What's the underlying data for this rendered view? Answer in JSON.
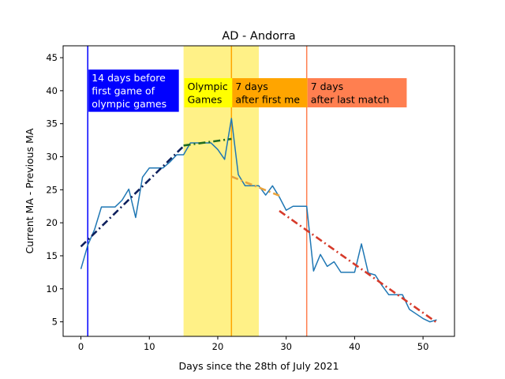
{
  "chart_data": {
    "type": "line",
    "title": "AD - Andorra",
    "xlabel": "Days since the 28th of July 2021",
    "ylabel": "Current MA - Previous MA",
    "xlim": [
      -2.6,
      54.6
    ],
    "ylim": [
      2.8,
      46.8
    ],
    "xticks": [
      0,
      10,
      20,
      30,
      40,
      50
    ],
    "yticks": [
      5,
      10,
      15,
      20,
      25,
      30,
      35,
      40,
      45
    ],
    "grid": false,
    "series": [
      {
        "color": "#1f77b4",
        "x": [
          0,
          1,
          2,
          3,
          4,
          5,
          6,
          7,
          8,
          9,
          10,
          11,
          12,
          13,
          14,
          15,
          16,
          17,
          18,
          19,
          20,
          21,
          22,
          23,
          24,
          25,
          26,
          27,
          28,
          29,
          30,
          31,
          32,
          33,
          34,
          35,
          36,
          37,
          38,
          39,
          40,
          41,
          42,
          43,
          44,
          45,
          46,
          47,
          48,
          49,
          50,
          51,
          52
        ],
        "y": [
          13.0,
          16.6,
          19.0,
          22.4,
          22.4,
          22.4,
          23.4,
          25.1,
          20.8,
          26.9,
          28.3,
          28.3,
          28.3,
          29.2,
          30.3,
          30.3,
          32.1,
          32.1,
          32.1,
          32.1,
          31.1,
          29.6,
          35.8,
          27.3,
          25.6,
          25.6,
          25.6,
          24.2,
          25.6,
          23.9,
          21.9,
          22.5,
          22.5,
          22.5,
          12.7,
          15.2,
          13.4,
          14.1,
          12.5,
          12.5,
          12.5,
          16.8,
          12.4,
          12.1,
          10.5,
          9.1,
          9.1,
          9.1,
          6.9,
          6.2,
          5.5,
          5.0,
          5.3
        ]
      }
    ],
    "trend_lines": [
      {
        "color": "#0d1f5c",
        "x": [
          0,
          15
        ],
        "y": [
          16.4,
          31.6
        ]
      },
      {
        "color": "#1f6b1f",
        "x": [
          15,
          22
        ],
        "y": [
          31.7,
          32.7
        ]
      },
      {
        "color": "#e8a33d",
        "x": [
          22,
          29
        ],
        "y": [
          27.0,
          24.1
        ]
      },
      {
        "color": "#d63a2a",
        "x": [
          29,
          52
        ],
        "y": [
          21.8,
          4.9
        ]
      }
    ],
    "shaded_regions": [
      {
        "color": "#fff07a",
        "x": [
          15,
          26
        ]
      }
    ],
    "vertical_lines": [
      {
        "color": "#0000ff",
        "x": 1
      },
      {
        "color": "#ffa500",
        "x": 22
      },
      {
        "color": "#ff7f50",
        "x": 33
      }
    ],
    "annotations": [
      {
        "lines": [
          "14 days before",
          "first game of",
          "olympic games"
        ],
        "bg": "#0000ff",
        "fg": "#ffffff",
        "x": 1,
        "y": 43.2,
        "width_days": 13.2
      },
      {
        "lines": [
          "Olympic",
          "Games"
        ],
        "bg": "#ffff00",
        "fg": "#000000",
        "x": 15,
        "y": 41.9,
        "width_days": 7.2
      },
      {
        "lines": [
          "7 days",
          "after first me"
        ],
        "bg": "#ffa500",
        "fg": "#000000",
        "x": 22,
        "y": 41.9,
        "width_days": 11.0
      },
      {
        "lines": [
          "7 days",
          "after last match"
        ],
        "bg": "#ff7f50",
        "fg": "#000000",
        "x": 33,
        "y": 41.9,
        "width_days": 14.5
      }
    ]
  }
}
